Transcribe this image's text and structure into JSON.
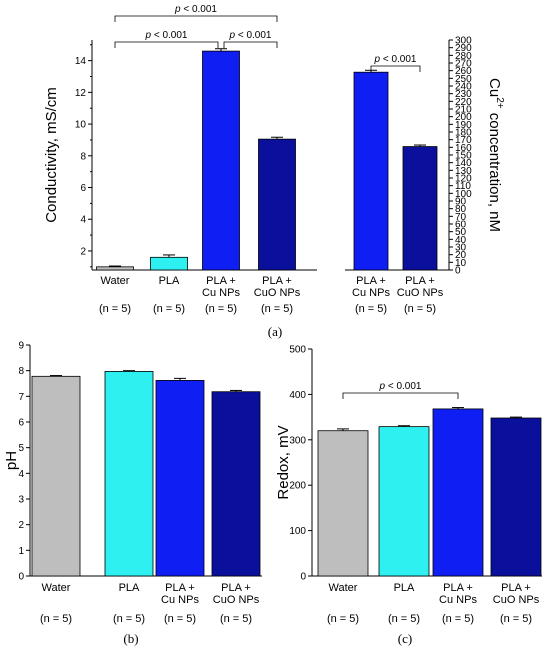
{
  "figure": {
    "labels": [
      "(a)",
      "(b)",
      "(c)"
    ],
    "n_label": "(n = 5)",
    "colors": {
      "water": "#bebebe",
      "pla": "#2ef0f0",
      "cu": "#0f1ef2",
      "cuo": "#0a0f9c",
      "axis": "#000000"
    }
  },
  "chart_data": [
    {
      "id": "a-left",
      "type": "bar",
      "categories": [
        "Water",
        "PLA",
        "PLA +\nCu NPs",
        "PLA +\nCuO NPs"
      ],
      "values": [
        1.0,
        1.6,
        14.6,
        9.05
      ],
      "errors": [
        0.05,
        0.15,
        0.15,
        0.12
      ],
      "colors": [
        "#bebebe",
        "#2ef0f0",
        "#0f1ef2",
        "#0a0f9c"
      ],
      "ylabel": "Conductivity, mS/cm",
      "yticks": [
        2,
        4,
        6,
        8,
        10,
        12,
        14
      ],
      "ylim": [
        0.8,
        15.3
      ],
      "n_labels": [
        "(n = 5)",
        "(n = 5)",
        "(n = 5)",
        "(n = 5)"
      ],
      "significance": [
        {
          "from": 0,
          "to": 2,
          "label": "p < 0.001"
        },
        {
          "from": 2,
          "to": 3,
          "label": "p < 0.001"
        },
        {
          "from": 0,
          "to": 3,
          "label": "p < 0.001"
        }
      ]
    },
    {
      "id": "a-right",
      "type": "bar",
      "categories": [
        "PLA +\nCu NPs",
        "PLA +\nCuO NPs"
      ],
      "values": [
        258,
        161
      ],
      "errors": [
        2.5,
        2
      ],
      "colors": [
        "#0f1ef2",
        "#0a0f9c"
      ],
      "ylabel": "Cu2+ concentration, nM",
      "ylabel_parts": [
        "Cu",
        "2+",
        " concentration, nM"
      ],
      "yticks": [
        0,
        10,
        20,
        30,
        40,
        50,
        60,
        70,
        80,
        90,
        100,
        110,
        120,
        130,
        140,
        150,
        160,
        170,
        180,
        190,
        200,
        210,
        220,
        230,
        240,
        250,
        260,
        270,
        280,
        290,
        300
      ],
      "ylim": [
        0,
        300
      ],
      "n_labels": [
        "(n = 5)",
        "(n = 5)"
      ],
      "significance": [
        {
          "from": 0,
          "to": 1,
          "label": "p < 0.001"
        }
      ]
    },
    {
      "id": "b",
      "type": "bar",
      "categories": [
        "Water",
        "PLA",
        "PLA +\nCu NPs",
        "PLA +\nCuO NPs"
      ],
      "values": [
        7.78,
        7.97,
        7.62,
        7.18
      ],
      "errors": [
        0.03,
        0.03,
        0.08,
        0.05
      ],
      "colors": [
        "#bebebe",
        "#2ef0f0",
        "#0f1ef2",
        "#0a0f9c"
      ],
      "ylabel": "pH",
      "yticks": [
        0,
        1,
        2,
        3,
        4,
        5,
        6,
        7,
        8,
        9
      ],
      "ylim": [
        0,
        9
      ],
      "n_labels": [
        "(n = 5)",
        "(n = 5)",
        "(n = 5)",
        "(n = 5)"
      ],
      "significance": []
    },
    {
      "id": "c",
      "type": "bar",
      "categories": [
        "Water",
        "PLA",
        "PLA +\nCu NPs",
        "PLA +\nCuO NPs"
      ],
      "values": [
        320,
        329,
        368,
        348
      ],
      "errors": [
        4,
        2,
        3,
        2
      ],
      "colors": [
        "#bebebe",
        "#2ef0f0",
        "#0f1ef2",
        "#0a0f9c"
      ],
      "ylabel": "Redox, mV",
      "yticks": [
        0,
        100,
        200,
        300,
        400,
        500
      ],
      "ylim": [
        0,
        500
      ],
      "n_labels": [
        "(n = 5)",
        "(n = 5)",
        "(n = 5)",
        "(n = 5)"
      ],
      "significance": [
        {
          "from": 0,
          "to": 2,
          "label": "p < 0.001"
        }
      ]
    }
  ]
}
